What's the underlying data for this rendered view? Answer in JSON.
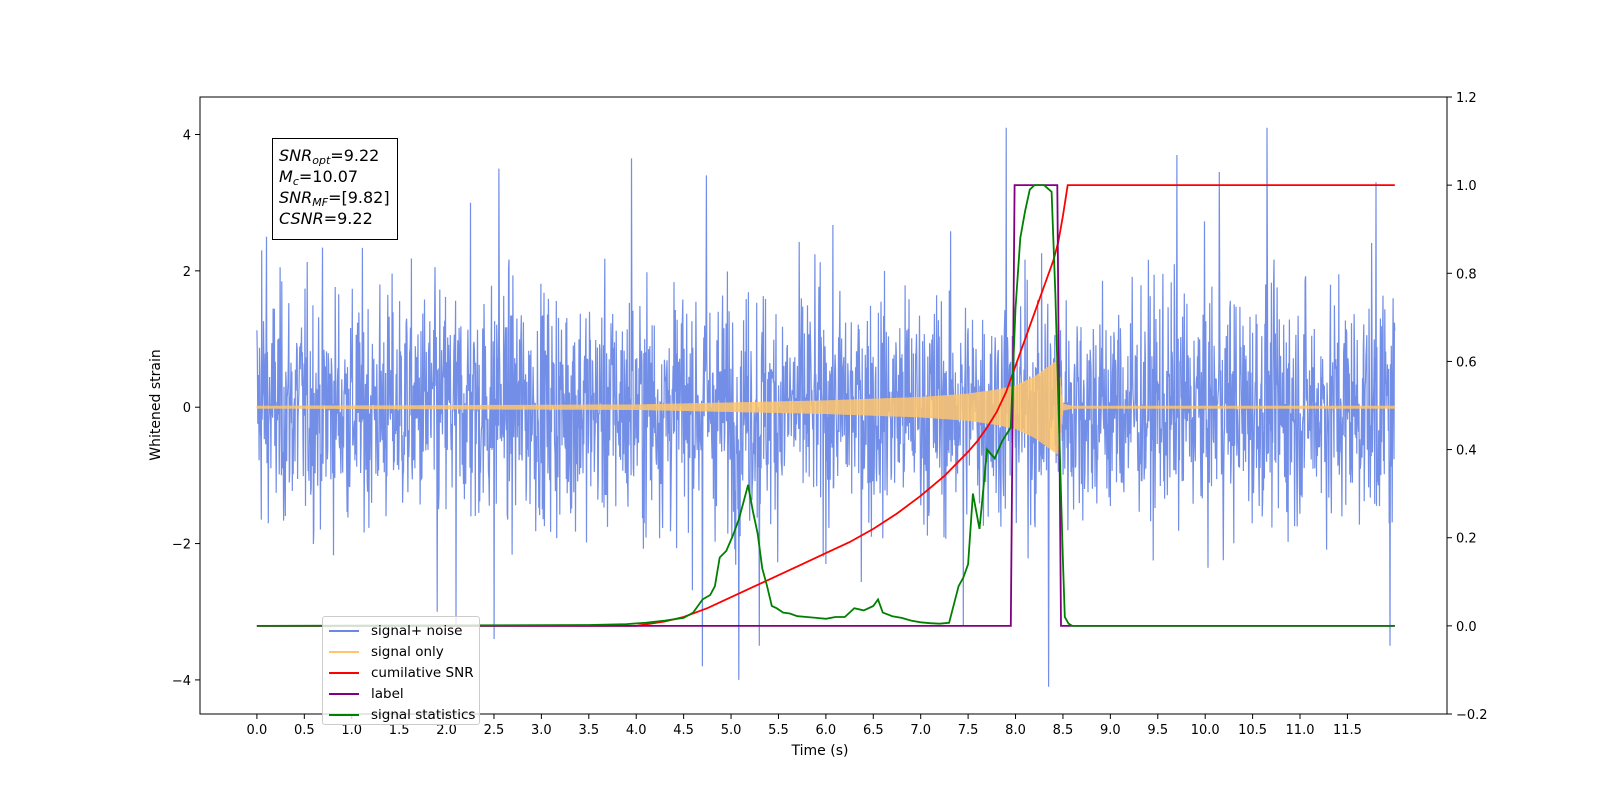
{
  "chart_data": {
    "type": "line",
    "xlabel": "Time (s)",
    "ylabel": "Whitened strain",
    "xlim": [
      -0.6,
      12.55
    ],
    "ylim": [
      -4.5,
      4.55
    ],
    "y2lim": [
      -0.2,
      1.2
    ],
    "x_ticks": [
      "0.0",
      "0.5",
      "1.0",
      "1.5",
      "2.0",
      "2.5",
      "3.0",
      "3.5",
      "4.0",
      "4.5",
      "5.0",
      "5.5",
      "6.0",
      "6.5",
      "7.0",
      "7.5",
      "8.0",
      "8.5",
      "9.0",
      "9.5",
      "10.0",
      "10.5",
      "11.0",
      "11.5"
    ],
    "y_ticks": [
      "4",
      "2",
      "0",
      "−2",
      "−4"
    ],
    "y2_ticks": [
      "1.2",
      "1.0",
      "0.8",
      "0.6",
      "0.4",
      "0.2",
      "0.0",
      "−0.2"
    ],
    "grid": false,
    "legend_position": "lower-left",
    "annotation": {
      "snr_opt": {
        "symbol": "SNR",
        "sub": "opt",
        "value": "=9.22"
      },
      "mc": {
        "symbol": "M",
        "sub": "c",
        "value": "=10.07"
      },
      "snr_mf": {
        "symbol": "SNR",
        "sub": "MF",
        "value": "=[9.82]"
      },
      "csnr": {
        "symbol": "CSNR",
        "value": "=9.22"
      }
    },
    "series": [
      {
        "name": "signal+ noise",
        "axis": "left",
        "color": "#6a88e6",
        "kind": "noise",
        "x_range": [
          0.0,
          12.0
        ],
        "std": 0.85,
        "peaks": [
          [
            0.05,
            2.3
          ],
          [
            0.1,
            2.5
          ],
          [
            1.9,
            -3.0
          ],
          [
            2.1,
            -3.2
          ],
          [
            2.25,
            3.0
          ],
          [
            2.5,
            -3.4
          ],
          [
            2.55,
            3.5
          ],
          [
            3.95,
            3.65
          ],
          [
            4.7,
            -3.8
          ],
          [
            4.74,
            3.4
          ],
          [
            5.08,
            -4.0
          ],
          [
            5.3,
            -3.5
          ],
          [
            7.45,
            -3.2
          ],
          [
            7.9,
            4.1
          ],
          [
            8.35,
            -4.1
          ],
          [
            9.7,
            3.7
          ],
          [
            10.15,
            3.45
          ],
          [
            10.65,
            4.1
          ],
          [
            11.8,
            3.3
          ],
          [
            11.95,
            -3.5
          ]
        ]
      },
      {
        "name": "signal only",
        "axis": "left",
        "color": "#ffc56b",
        "kind": "chirp",
        "x": [
          0.0,
          4.0,
          5.0,
          6.0,
          7.0,
          7.5,
          7.8,
          8.0,
          8.2,
          8.35,
          8.45,
          8.5,
          8.6,
          12.0
        ],
        "amplitude": [
          0.02,
          0.04,
          0.07,
          0.1,
          0.15,
          0.2,
          0.26,
          0.32,
          0.45,
          0.6,
          0.7,
          0.05,
          0.02,
          0.02
        ]
      },
      {
        "name": "cumilative SNR",
        "axis": "right",
        "color": "#ff0000",
        "x": [
          0.0,
          4.0,
          4.3,
          4.5,
          4.75,
          5.0,
          5.25,
          5.5,
          5.75,
          6.0,
          6.25,
          6.5,
          6.75,
          7.0,
          7.25,
          7.5,
          7.6,
          7.7,
          7.8,
          7.9,
          8.0,
          8.1,
          8.2,
          8.3,
          8.4,
          8.45,
          8.5,
          8.55,
          12.0
        ],
        "values": [
          0.0,
          0.0,
          0.01,
          0.02,
          0.04,
          0.065,
          0.09,
          0.115,
          0.14,
          0.165,
          0.19,
          0.22,
          0.255,
          0.295,
          0.34,
          0.395,
          0.42,
          0.45,
          0.485,
          0.53,
          0.59,
          0.65,
          0.71,
          0.77,
          0.83,
          0.87,
          0.93,
          1.0,
          1.0
        ]
      },
      {
        "name": "label",
        "axis": "right",
        "color": "#800080",
        "x": [
          0.0,
          7.95,
          7.99,
          8.44,
          8.48,
          12.0
        ],
        "values": [
          0.0,
          0.0,
          1.0,
          1.0,
          0.0,
          0.0
        ]
      },
      {
        "name": "signal statistics",
        "axis": "right",
        "color": "#008000",
        "x": [
          0.0,
          3.5,
          3.9,
          4.1,
          4.3,
          4.5,
          4.6,
          4.7,
          4.78,
          4.83,
          4.88,
          4.95,
          5.02,
          5.08,
          5.13,
          5.18,
          5.23,
          5.28,
          5.33,
          5.38,
          5.43,
          5.48,
          5.55,
          5.62,
          5.7,
          5.8,
          5.9,
          6.0,
          6.1,
          6.2,
          6.3,
          6.4,
          6.5,
          6.55,
          6.6,
          6.7,
          6.8,
          6.9,
          7.0,
          7.1,
          7.2,
          7.3,
          7.4,
          7.45,
          7.5,
          7.55,
          7.62,
          7.7,
          7.78,
          7.86,
          7.95,
          8.0,
          8.05,
          8.1,
          8.15,
          8.2,
          8.3,
          8.38,
          8.42,
          8.46,
          8.5,
          8.52,
          8.56,
          8.6,
          9.0,
          12.0
        ],
        "values": [
          0.0,
          0.002,
          0.004,
          0.007,
          0.012,
          0.018,
          0.03,
          0.06,
          0.07,
          0.09,
          0.155,
          0.17,
          0.205,
          0.24,
          0.28,
          0.32,
          0.26,
          0.21,
          0.13,
          0.09,
          0.045,
          0.04,
          0.03,
          0.028,
          0.022,
          0.02,
          0.018,
          0.016,
          0.02,
          0.02,
          0.04,
          0.035,
          0.045,
          0.06,
          0.03,
          0.022,
          0.018,
          0.012,
          0.008,
          0.006,
          0.005,
          0.007,
          0.09,
          0.11,
          0.14,
          0.3,
          0.22,
          0.4,
          0.38,
          0.42,
          0.45,
          0.72,
          0.88,
          0.94,
          0.99,
          1.0,
          1.0,
          0.985,
          0.75,
          0.45,
          0.15,
          0.02,
          0.005,
          0.0,
          0.0,
          0.0
        ]
      }
    ]
  },
  "legend": {
    "items": [
      {
        "label": "signal+ noise",
        "color": "#6a88e6"
      },
      {
        "label": "signal only",
        "color": "#ffc56b"
      },
      {
        "label": "cumilative SNR",
        "color": "#ff0000"
      },
      {
        "label": "label",
        "color": "#800080"
      },
      {
        "label": "signal statistics",
        "color": "#008000"
      }
    ]
  }
}
